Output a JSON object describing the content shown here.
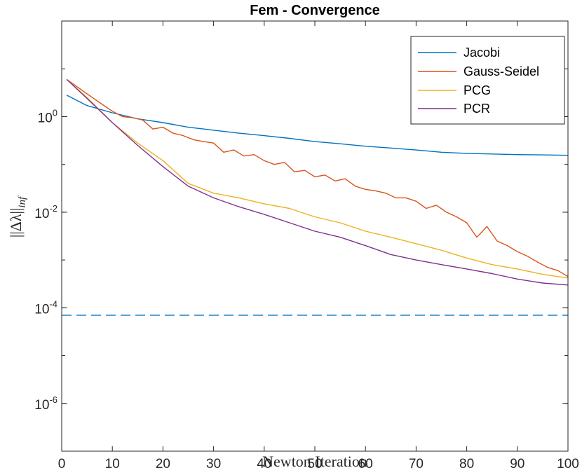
{
  "chart_data": {
    "type": "line",
    "title": "Fem - Convergence",
    "xlabel": "Newton Iteration",
    "ylabel": "||Δλ||",
    "ylabel_sub": "inf",
    "xlim": [
      0,
      100
    ],
    "ylim_log10": [
      -7,
      2
    ],
    "x_ticks": [
      0,
      10,
      20,
      30,
      40,
      50,
      60,
      70,
      80,
      90,
      100
    ],
    "y_ticks": [
      {
        "base": "10",
        "exp": "0",
        "value": 1
      },
      {
        "base": "10",
        "exp": "-2",
        "value": 0.01
      },
      {
        "base": "10",
        "exp": "-4",
        "value": 0.0001
      },
      {
        "base": "10",
        "exp": "-6",
        "value": 1e-06
      }
    ],
    "legend_position": "top-right",
    "tolerance_line": {
      "value": 7e-05,
      "style": "dashed",
      "color": "#0072BD"
    },
    "series": [
      {
        "name": "Jacobi",
        "color": "#0072BD",
        "x": [
          1,
          5,
          10,
          15,
          20,
          25,
          30,
          35,
          40,
          45,
          50,
          55,
          60,
          65,
          70,
          75,
          80,
          85,
          90,
          95,
          100
        ],
        "y": [
          2.8,
          1.7,
          1.2,
          0.9,
          0.75,
          0.6,
          0.52,
          0.45,
          0.4,
          0.35,
          0.3,
          0.27,
          0.24,
          0.22,
          0.2,
          0.18,
          0.17,
          0.165,
          0.16,
          0.158,
          0.155
        ]
      },
      {
        "name": "Gauss-Seidel",
        "color": "#D95319",
        "x": [
          1,
          5,
          8,
          10,
          12,
          14,
          16,
          18,
          20,
          22,
          24,
          26,
          28,
          30,
          32,
          34,
          36,
          38,
          40,
          42,
          44,
          46,
          48,
          50,
          52,
          54,
          56,
          58,
          60,
          62,
          64,
          66,
          68,
          70,
          72,
          74,
          76,
          78,
          80,
          82,
          84,
          86,
          88,
          90,
          92,
          94,
          96,
          98,
          100
        ],
        "y": [
          6,
          3,
          1.8,
          1.3,
          1.0,
          0.95,
          0.85,
          0.55,
          0.6,
          0.45,
          0.4,
          0.33,
          0.3,
          0.28,
          0.18,
          0.2,
          0.15,
          0.16,
          0.12,
          0.1,
          0.11,
          0.07,
          0.075,
          0.055,
          0.06,
          0.045,
          0.05,
          0.035,
          0.03,
          0.028,
          0.025,
          0.02,
          0.02,
          0.017,
          0.012,
          0.014,
          0.01,
          0.008,
          0.006,
          0.003,
          0.005,
          0.0025,
          0.002,
          0.0015,
          0.0012,
          0.0009,
          0.0007,
          0.0006,
          0.00045
        ]
      },
      {
        "name": "PCG",
        "color": "#EDB120",
        "x": [
          1,
          5,
          10,
          15,
          20,
          25,
          30,
          35,
          40,
          45,
          50,
          55,
          60,
          65,
          70,
          75,
          80,
          85,
          90,
          95,
          100
        ],
        "y": [
          6,
          2.5,
          0.75,
          0.28,
          0.12,
          0.04,
          0.025,
          0.02,
          0.015,
          0.012,
          0.008,
          0.006,
          0.004,
          0.003,
          0.0022,
          0.0016,
          0.0011,
          0.0008,
          0.00065,
          0.0005,
          0.00042
        ]
      },
      {
        "name": "PCR",
        "color": "#7E2F8E",
        "x": [
          1,
          5,
          10,
          15,
          20,
          25,
          30,
          35,
          40,
          45,
          50,
          55,
          60,
          65,
          70,
          75,
          80,
          85,
          90,
          95,
          100
        ],
        "y": [
          6,
          2.4,
          0.75,
          0.25,
          0.09,
          0.035,
          0.02,
          0.013,
          0.009,
          0.006,
          0.004,
          0.003,
          0.002,
          0.0013,
          0.001,
          0.0008,
          0.00065,
          0.00052,
          0.0004,
          0.00033,
          0.0003
        ]
      }
    ]
  }
}
